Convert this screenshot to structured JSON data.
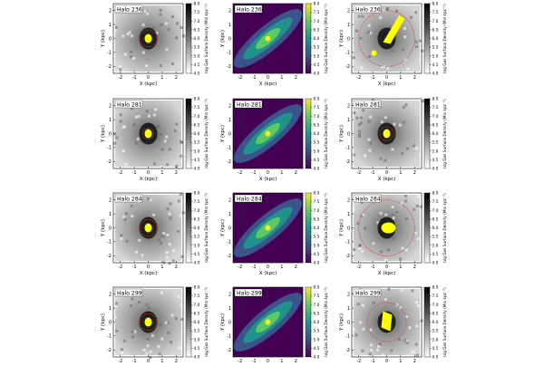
{
  "figure": {
    "title": "",
    "colorbar_label": "log Gas Surface Density (M$_\\odot$ kpc$^{-2}$)",
    "colorbar_label_display": "log Gas Surface Density (M⊙ kpc⁻²)"
  },
  "chart_data": {
    "type": "heatmap",
    "layout": {
      "rows": 4,
      "cols": 3
    },
    "xlabel": "X (kpc)",
    "ylabel": "Y (kpc)",
    "xticks": [
      -2,
      -1,
      0,
      1,
      2
    ],
    "yticks": [
      2,
      1,
      0,
      -1,
      -2
    ],
    "xlim": [
      -2.5,
      2.5
    ],
    "ylim": [
      -2.5,
      2.5
    ],
    "colorbar": {
      "ticks": [
        "8.0",
        "7.5",
        "7.0",
        "6.5",
        "6.0",
        "5.5",
        "5.0",
        "4.5",
        "4.0"
      ],
      "range": [
        4.0,
        8.0
      ],
      "label": "log Gas Surface Density (M⊙ kpc⁻²)"
    },
    "column_styles": [
      "grayscale",
      "viridis",
      "grayscale"
    ],
    "panels": [
      {
        "halo": "Halo 236",
        "row": 0,
        "col": 0,
        "style": "grayscale",
        "circle_r_kpc": 0.6
      },
      {
        "halo": "Halo 236",
        "row": 0,
        "col": 1,
        "style": "viridis",
        "circle_r_kpc": 0
      },
      {
        "halo": "Halo 236",
        "row": 0,
        "col": 2,
        "style": "grayscale",
        "circle_r_kpc": 2.0
      },
      {
        "halo": "Halo 281",
        "row": 1,
        "col": 0,
        "style": "grayscale",
        "circle_r_kpc": 0.4
      },
      {
        "halo": "Halo 281",
        "row": 1,
        "col": 1,
        "style": "viridis",
        "circle_r_kpc": 0
      },
      {
        "halo": "Halo 281",
        "row": 1,
        "col": 2,
        "style": "grayscale",
        "circle_r_kpc": 0.5
      },
      {
        "halo": "Halo 284",
        "row": 2,
        "col": 0,
        "style": "grayscale",
        "circle_r_kpc": 0.6
      },
      {
        "halo": "Halo 284",
        "row": 2,
        "col": 1,
        "style": "viridis",
        "circle_r_kpc": 0
      },
      {
        "halo": "Halo 284",
        "row": 2,
        "col": 2,
        "style": "grayscale",
        "circle_r_kpc": 2.0
      },
      {
        "halo": "Halo 299",
        "row": 3,
        "col": 0,
        "style": "grayscale",
        "circle_r_kpc": 0.6
      },
      {
        "halo": "Halo 299",
        "row": 3,
        "col": 1,
        "style": "viridis",
        "circle_r_kpc": 0
      },
      {
        "halo": "Halo 299",
        "row": 3,
        "col": 2,
        "style": "grayscale",
        "circle_r_kpc": 1.4
      }
    ]
  },
  "colors": {
    "star_particles": "#ffff00",
    "circle": "#e03030",
    "axis": "#000000"
  }
}
